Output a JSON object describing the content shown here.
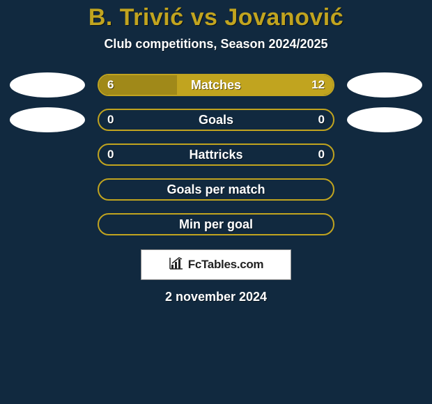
{
  "colors": {
    "background": "#11293f",
    "title": "#c1a41f",
    "subtitle": "#ffffff",
    "bar_border": "#c1a41f",
    "bar_fill_left": "#a08919",
    "bar_fill_right": "#c1a41f",
    "bar_label": "#ffffff",
    "value_text": "#ffffff",
    "avatar_left": "#ffffff",
    "avatar_right": "#ffffff",
    "attribution_bg": "#ffffff",
    "attribution_border": "#888888",
    "attribution_text": "#222222",
    "date": "#ffffff"
  },
  "title_fontsize": 34,
  "subtitle_fontsize": 18,
  "label_fontsize": 18,
  "title": "B. Trivić vs Jovanović",
  "subtitle": "Club competitions, Season 2024/2025",
  "date": "2 november 2024",
  "attribution": "FcTables.com",
  "stats": [
    {
      "label": "Matches",
      "left_value": "6",
      "right_value": "12",
      "left_pct": 33.3,
      "right_pct": 66.7,
      "show_avatars": true,
      "show_values": true
    },
    {
      "label": "Goals",
      "left_value": "0",
      "right_value": "0",
      "left_pct": 0,
      "right_pct": 0,
      "show_avatars": true,
      "show_values": true
    },
    {
      "label": "Hattricks",
      "left_value": "0",
      "right_value": "0",
      "left_pct": 0,
      "right_pct": 0,
      "show_avatars": false,
      "show_values": true
    },
    {
      "label": "Goals per match",
      "left_value": "",
      "right_value": "",
      "left_pct": 0,
      "right_pct": 0,
      "show_avatars": false,
      "show_values": false
    },
    {
      "label": "Min per goal",
      "left_value": "",
      "right_value": "",
      "left_pct": 0,
      "right_pct": 0,
      "show_avatars": false,
      "show_values": false
    }
  ]
}
